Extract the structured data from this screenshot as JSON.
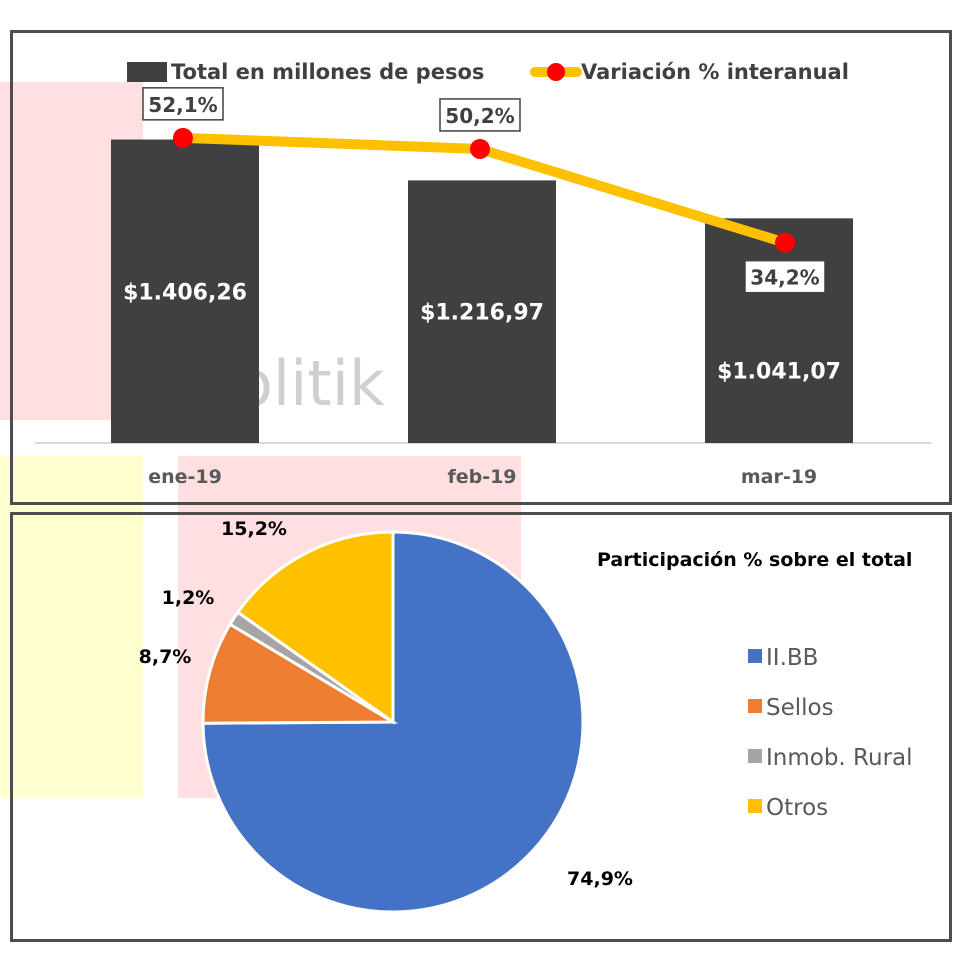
{
  "colors": {
    "bar": "#404040",
    "line": "#ffc000",
    "marker": "#ff0000",
    "iibb": "#4472c4",
    "sellos": "#ed7d31",
    "inmob": "#a5a5a5",
    "otros": "#ffc000"
  },
  "watermark": "olitik",
  "chart_data": [
    {
      "type": "bar",
      "categories": [
        "ene-19",
        "feb-19",
        "mar-19"
      ],
      "series": [
        {
          "name": "Total en millones de pesos",
          "values": [
            1406.26,
            1216.97,
            1041.07
          ],
          "labels": [
            "$1.406,26",
            "$1.216,97",
            "$1.041,07"
          ]
        },
        {
          "name": "Variación % interanual",
          "type": "line",
          "values": [
            52.1,
            50.2,
            34.2
          ],
          "labels": [
            "52,1%",
            "50,2%",
            "34,2%"
          ]
        }
      ],
      "ylim": [
        0,
        1900
      ],
      "y2lim": [
        0,
        70
      ],
      "legend": "top",
      "grid": false
    },
    {
      "type": "pie",
      "title": "Participación % sobre el total",
      "categories": [
        "II.BB",
        "Sellos",
        "Inmob. Rural",
        "Otros"
      ],
      "values": [
        74.9,
        8.7,
        1.2,
        15.2
      ],
      "labels": [
        "74,9%",
        "8,7%",
        "1,2%",
        "15,2%"
      ],
      "legend": "right"
    }
  ]
}
